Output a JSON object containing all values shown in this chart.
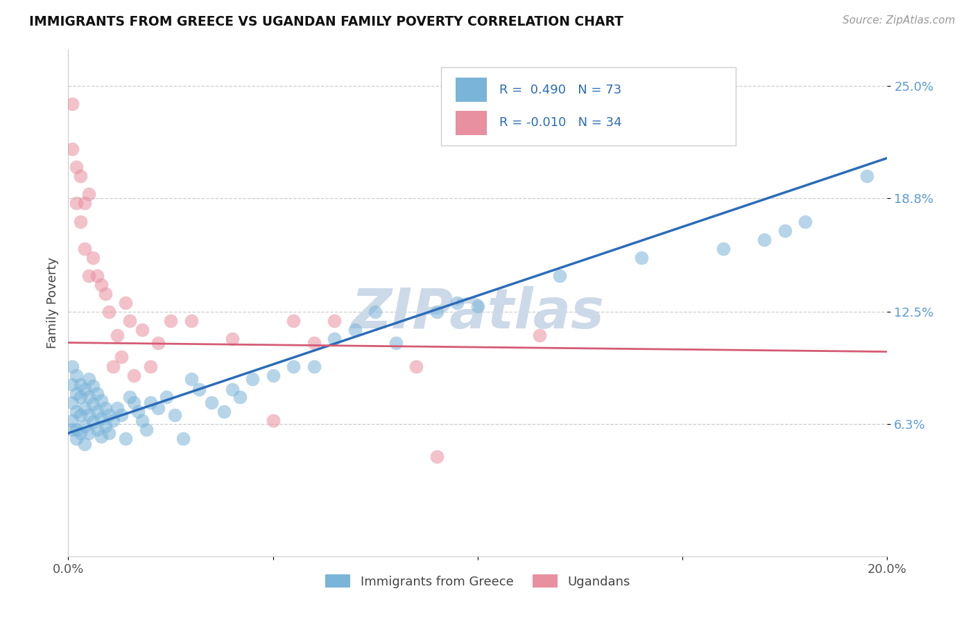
{
  "title": "IMMIGRANTS FROM GREECE VS UGANDAN FAMILY POVERTY CORRELATION CHART",
  "source_text": "Source: ZipAtlas.com",
  "ylabel": "Family Poverty",
  "xlim": [
    0.0,
    0.2
  ],
  "ylim": [
    -0.01,
    0.27
  ],
  "ytick_vals": [
    0.063,
    0.125,
    0.188,
    0.25
  ],
  "ytick_labels": [
    "6.3%",
    "12.5%",
    "18.8%",
    "25.0%"
  ],
  "blue_R": 0.49,
  "blue_N": 73,
  "pink_R": -0.01,
  "pink_N": 34,
  "blue_color": "#7ab4d8",
  "pink_color": "#e88fa0",
  "blue_line_color": "#2b6cb8",
  "pink_line_color": "#d45b74",
  "watermark": "ZIPatlas",
  "watermark_color": "#ccd9e8",
  "legend_label_blue": "Immigrants from Greece",
  "legend_label_pink": "Ugandans",
  "blue_line_y0": 0.058,
  "blue_line_y1": 0.21,
  "pink_line_y0": 0.108,
  "pink_line_y1": 0.103,
  "blue_x": [
    0.001,
    0.001,
    0.001,
    0.001,
    0.001,
    0.002,
    0.002,
    0.002,
    0.002,
    0.002,
    0.003,
    0.003,
    0.003,
    0.003,
    0.004,
    0.004,
    0.004,
    0.004,
    0.005,
    0.005,
    0.005,
    0.005,
    0.006,
    0.006,
    0.006,
    0.007,
    0.007,
    0.007,
    0.008,
    0.008,
    0.008,
    0.009,
    0.009,
    0.01,
    0.01,
    0.011,
    0.012,
    0.013,
    0.014,
    0.015,
    0.016,
    0.017,
    0.018,
    0.019,
    0.02,
    0.022,
    0.024,
    0.026,
    0.028,
    0.03,
    0.032,
    0.035,
    0.038,
    0.04,
    0.042,
    0.045,
    0.05,
    0.055,
    0.06,
    0.065,
    0.07,
    0.075,
    0.08,
    0.09,
    0.095,
    0.1,
    0.12,
    0.14,
    0.16,
    0.17,
    0.175,
    0.18,
    0.195
  ],
  "blue_y": [
    0.095,
    0.085,
    0.075,
    0.065,
    0.06,
    0.09,
    0.08,
    0.07,
    0.06,
    0.055,
    0.085,
    0.078,
    0.068,
    0.058,
    0.082,
    0.072,
    0.062,
    0.052,
    0.088,
    0.078,
    0.068,
    0.058,
    0.084,
    0.074,
    0.064,
    0.08,
    0.07,
    0.06,
    0.076,
    0.066,
    0.056,
    0.072,
    0.062,
    0.068,
    0.058,
    0.065,
    0.072,
    0.068,
    0.055,
    0.078,
    0.075,
    0.07,
    0.065,
    0.06,
    0.075,
    0.072,
    0.078,
    0.068,
    0.055,
    0.088,
    0.082,
    0.075,
    0.07,
    0.082,
    0.078,
    0.088,
    0.09,
    0.095,
    0.095,
    0.11,
    0.115,
    0.125,
    0.108,
    0.125,
    0.13,
    0.128,
    0.145,
    0.155,
    0.16,
    0.165,
    0.17,
    0.175,
    0.2
  ],
  "pink_x": [
    0.001,
    0.001,
    0.002,
    0.002,
    0.003,
    0.003,
    0.004,
    0.004,
    0.005,
    0.005,
    0.006,
    0.007,
    0.008,
    0.009,
    0.01,
    0.011,
    0.012,
    0.013,
    0.014,
    0.015,
    0.016,
    0.018,
    0.02,
    0.022,
    0.025,
    0.03,
    0.04,
    0.05,
    0.055,
    0.06,
    0.065,
    0.085,
    0.09,
    0.115
  ],
  "pink_y": [
    0.24,
    0.215,
    0.205,
    0.185,
    0.175,
    0.2,
    0.16,
    0.185,
    0.145,
    0.19,
    0.155,
    0.145,
    0.14,
    0.135,
    0.125,
    0.095,
    0.112,
    0.1,
    0.13,
    0.12,
    0.09,
    0.115,
    0.095,
    0.108,
    0.12,
    0.12,
    0.11,
    0.065,
    0.12,
    0.108,
    0.12,
    0.095,
    0.045,
    0.112
  ]
}
